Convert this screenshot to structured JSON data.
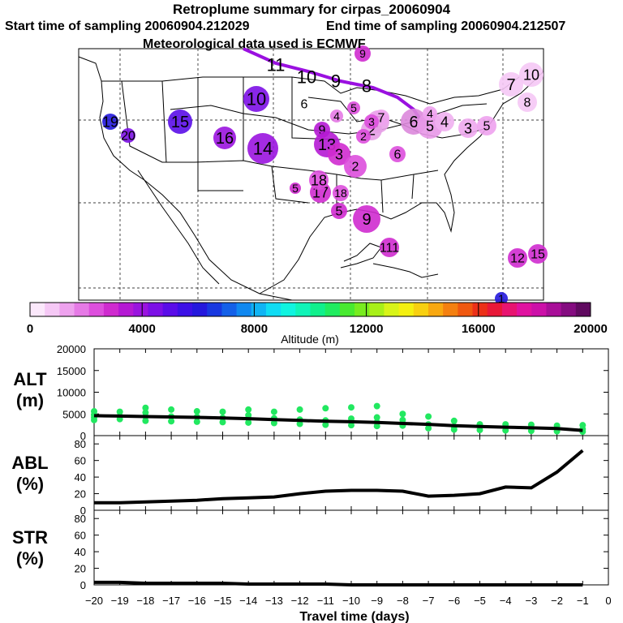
{
  "header": {
    "title": "Retroplume summary for cirpas_20060904",
    "start": "Start time of sampling 20060904.212029",
    "end": "End time of sampling 20060904.212507",
    "met": "Meteorological data used is ECMWF"
  },
  "colorbar": {
    "label": "Altitude (m)",
    "range": [
      0,
      20000
    ],
    "ticks": [
      "0",
      "4000",
      "8000",
      "12000",
      "16000",
      "20000"
    ],
    "colors": [
      "#fbe8fb",
      "#f5c8f5",
      "#eea2ee",
      "#e67ae6",
      "#dd4fdd",
      "#cf2bcf",
      "#b519d4",
      "#9a14df",
      "#7c10e6",
      "#5a0de8",
      "#3c10e6",
      "#2418dd",
      "#1838e0",
      "#1460e8",
      "#1088f0",
      "#10b4f4",
      "#10dcf4",
      "#10f4e0",
      "#10f4b8",
      "#10f08c",
      "#20ec60",
      "#48ea30",
      "#78ec20",
      "#a8f018",
      "#d8f418",
      "#f4f010",
      "#f8d010",
      "#f8a810",
      "#f48010",
      "#f05810",
      "#ec3018",
      "#e81838",
      "#e81470",
      "#e012a0",
      "#cc10a8",
      "#a80e98",
      "#840c80",
      "#600a60"
    ]
  },
  "map": {
    "path_points": [
      {
        "label": "11",
        "value": 11,
        "color": "#f5c8f5"
      },
      {
        "label": "10",
        "value": 10,
        "color": "#f5c8f5"
      },
      {
        "label": "9",
        "value": 9,
        "color": "#f5c8f5"
      },
      {
        "label": "8",
        "value": 8,
        "color": "#f5c8f5"
      },
      {
        "label": "7",
        "value": 7,
        "color": "#e8a0e8"
      },
      {
        "label": "6",
        "value": 6,
        "color": "#dc88dc"
      },
      {
        "label": "5",
        "value": 5,
        "color": "#e898e8"
      },
      {
        "label": "4",
        "value": 4,
        "color": "#f0b0f0"
      },
      {
        "label": "3",
        "value": 3,
        "color": "#eea8ee"
      },
      {
        "label": "2",
        "value": 2,
        "color": "#e6a0e6"
      },
      {
        "label": "10",
        "value": 10,
        "color": "#7c10e6"
      },
      {
        "label": "6",
        "value": 6,
        "color": "#9a14df"
      },
      {
        "label": "15",
        "value": 15,
        "color": "#5a0de8"
      },
      {
        "label": "16",
        "value": 16,
        "color": "#9a14df"
      },
      {
        "label": "14",
        "value": 14,
        "color": "#9a14df"
      },
      {
        "label": "19",
        "value": 19,
        "color": "#2418dd"
      },
      {
        "label": "20",
        "value": 20,
        "color": "#7c10e6"
      },
      {
        "label": "9",
        "value": 9,
        "color": "#b519d4"
      },
      {
        "label": "13",
        "value": 13,
        "color": "#b519d4"
      },
      {
        "label": "3",
        "value": 3,
        "color": "#cf2bcf"
      },
      {
        "label": "2",
        "value": 2,
        "color": "#dd4fdd"
      },
      {
        "label": "6",
        "value": 6,
        "color": "#dd4fdd"
      },
      {
        "label": "5",
        "value": 5,
        "color": "#cf2bcf"
      },
      {
        "label": "17",
        "value": 17,
        "color": "#cf2bcf"
      },
      {
        "label": "18",
        "value": 18,
        "color": "#dd4fdd"
      },
      {
        "label": "5",
        "value": 5,
        "color": "#cf2bcf"
      },
      {
        "label": "9",
        "value": 9,
        "color": "#cf2bcf"
      },
      {
        "label": "111",
        "value": 111,
        "color": "#cf2bcf"
      },
      {
        "label": "12",
        "value": 12,
        "color": "#cf2bcf"
      },
      {
        "label": "15",
        "value": 15,
        "color": "#cf2bcf"
      },
      {
        "label": "1",
        "value": 1,
        "color": "#2418dd"
      },
      {
        "label": "18",
        "value": 18,
        "color": "#dd4fdd"
      },
      {
        "label": "7",
        "value": 7,
        "color": "#eea2ee"
      },
      {
        "label": "5",
        "value": 5,
        "color": "#dd4fdd"
      },
      {
        "label": "4",
        "value": 4,
        "color": "#e67ae6"
      },
      {
        "label": "2",
        "value": 2,
        "color": "#dd4fdd"
      },
      {
        "label": "3",
        "value": 3,
        "color": "#dd4fdd"
      },
      {
        "label": "7",
        "value": 7,
        "color": "#f5c8f5"
      },
      {
        "label": "10",
        "value": 10,
        "color": "#f5c8f5"
      },
      {
        "label": "8",
        "value": 8,
        "color": "#f5c8f5"
      },
      {
        "label": "5",
        "value": 5,
        "color": "#eea2ee"
      },
      {
        "label": "4",
        "value": 4,
        "color": "#eea2ee"
      },
      {
        "label": "9",
        "value": 9,
        "color": "#cf2bcf"
      }
    ]
  },
  "chart_data": [
    {
      "type": "scatter",
      "name": "ALT",
      "ylabel": "ALT (m)",
      "ylabel_top": "ALT",
      "ylabel_bottom": "(m)",
      "ylim": [
        0,
        20000
      ],
      "yticks": [
        "0",
        "5000",
        "10000",
        "15000",
        "20000"
      ],
      "ytick_values": [
        0,
        5000,
        10000,
        15000,
        20000
      ],
      "line": {
        "x": [
          -20,
          -19,
          -18,
          -17,
          -16,
          -15,
          -14,
          -13,
          -12,
          -11,
          -10,
          -9,
          -8,
          -7,
          -6,
          -5,
          -4,
          -3,
          -2,
          -1
        ],
        "y": [
          4600,
          4500,
          4400,
          4300,
          4200,
          4050,
          3900,
          3700,
          3500,
          3300,
          3200,
          3050,
          2800,
          2600,
          2300,
          2100,
          1950,
          1800,
          1650,
          1200
        ]
      },
      "points": {
        "x": [
          -20,
          -20,
          -20,
          -20,
          -19,
          -19,
          -19,
          -18,
          -18,
          -18,
          -18,
          -17,
          -17,
          -17,
          -16,
          -16,
          -16,
          -15,
          -15,
          -15,
          -14,
          -14,
          -14,
          -14,
          -13,
          -13,
          -13,
          -12,
          -12,
          -12,
          -11,
          -11,
          -11,
          -10,
          -10,
          -10,
          -9,
          -9,
          -9,
          -9,
          -8,
          -8,
          -8,
          -7,
          -7,
          -7,
          -6,
          -6,
          -6,
          -5,
          -5,
          -4,
          -4,
          -4,
          -3,
          -3,
          -2,
          -2,
          -1,
          -1,
          -1
        ],
        "y": [
          5600,
          4800,
          4200,
          3600,
          5500,
          4500,
          3800,
          6400,
          5300,
          4400,
          3400,
          6000,
          4400,
          3300,
          5600,
          4300,
          3200,
          5500,
          4100,
          3100,
          6000,
          4700,
          3900,
          3000,
          5500,
          4000,
          2900,
          6000,
          3700,
          2700,
          6300,
          3500,
          2500,
          6500,
          3900,
          2400,
          6800,
          4200,
          3100,
          2200,
          5000,
          3600,
          2300,
          4400,
          2600,
          1700,
          3400,
          2100,
          1400,
          2600,
          1300,
          2600,
          2000,
          1200,
          2500,
          1100,
          2300,
          1000,
          2400,
          1500,
          900
        ]
      }
    },
    {
      "type": "line",
      "name": "ABL",
      "ylabel": "ABL (%)",
      "ylabel_top": "ABL",
      "ylabel_bottom": "(%)",
      "ylim": [
        0,
        90
      ],
      "yticks": [
        "0",
        "20",
        "40",
        "60",
        "80"
      ],
      "ytick_values": [
        0,
        20,
        40,
        60,
        80
      ],
      "x": [
        -20,
        -19,
        -18,
        -17,
        -16,
        -15,
        -14,
        -13,
        -12,
        -11,
        -10,
        -9,
        -8,
        -7,
        -6,
        -5,
        -4,
        -3,
        -2,
        -1
      ],
      "y": [
        9,
        9,
        10,
        11,
        12,
        14,
        15,
        16,
        20,
        23,
        24,
        24,
        23,
        17,
        18,
        20,
        28,
        27,
        46,
        72
      ]
    },
    {
      "type": "line",
      "name": "STR",
      "ylabel": "STR (%)",
      "ylabel_top": "STR",
      "ylabel_bottom": "(%)",
      "ylim": [
        0,
        90
      ],
      "yticks": [
        "0",
        "20",
        "40",
        "60",
        "80"
      ],
      "ytick_values": [
        0,
        20,
        40,
        60,
        80
      ],
      "x": [
        -20,
        -19,
        -18,
        -17,
        -16,
        -15,
        -14,
        -13,
        -12,
        -11,
        -10,
        -9,
        -8,
        -7,
        -6,
        -5,
        -4,
        -3,
        -2,
        -1
      ],
      "y": [
        3,
        3,
        2,
        2,
        2,
        2,
        1,
        1,
        1,
        1,
        0,
        0,
        0,
        0,
        0,
        0,
        0,
        0,
        0,
        0
      ]
    }
  ],
  "xaxis": {
    "label": "Travel time (days)",
    "range": [
      -20,
      0
    ],
    "ticks": [
      "−20",
      "−19",
      "−18",
      "−17",
      "−16",
      "−15",
      "−14",
      "−13",
      "−12",
      "−11",
      "−10",
      "−9",
      "−8",
      "−7",
      "−6",
      "−5",
      "−4",
      "−3",
      "−2",
      "−1",
      "0"
    ],
    "tick_values": [
      -20,
      -19,
      -18,
      -17,
      -16,
      -15,
      -14,
      -13,
      -12,
      -11,
      -10,
      -9,
      -8,
      -7,
      -6,
      -5,
      -4,
      -3,
      -2,
      -1,
      0
    ]
  },
  "colors": {
    "scatter": "#22e860",
    "line": "#000000",
    "trajectory": "#9a10e0"
  }
}
